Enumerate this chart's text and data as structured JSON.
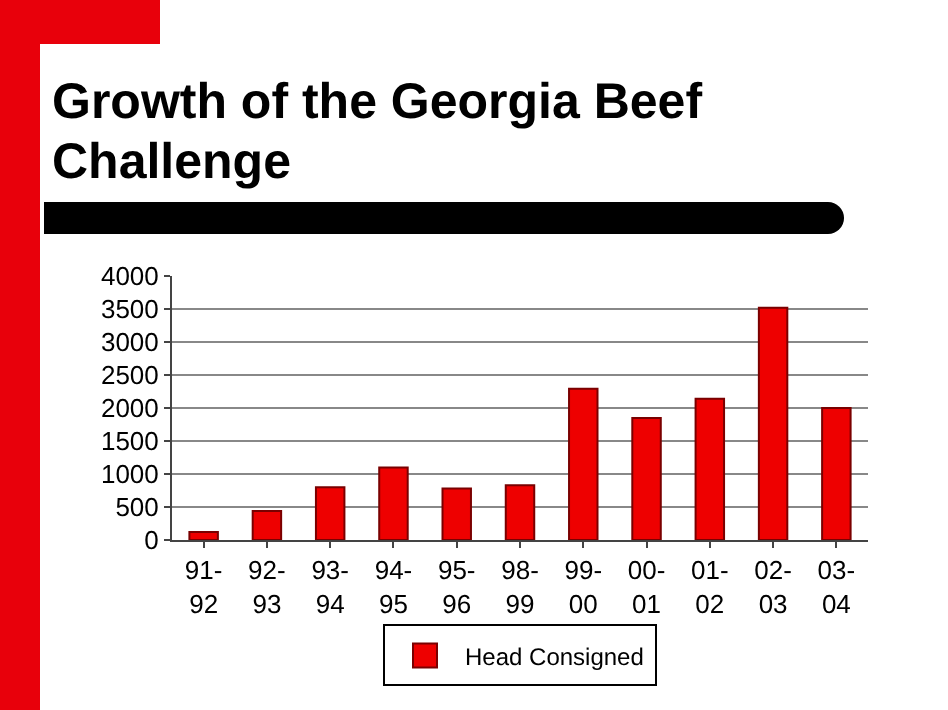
{
  "chart_data": {
    "type": "bar",
    "title": "Growth of the Georgia Beef Challenge",
    "categories": [
      "91-92",
      "92-93",
      "93-94",
      "94-95",
      "95-96",
      "98-99",
      "99-00",
      "00-01",
      "01-02",
      "02-03",
      "03-04"
    ],
    "series": [
      {
        "name": "Head Consigned",
        "color": "#ee0000",
        "values": [
          120,
          440,
          800,
          1100,
          780,
          830,
          2290,
          1850,
          2140,
          3520,
          2000
        ]
      }
    ],
    "ylim": [
      0,
      4000
    ],
    "yticks": [
      0,
      500,
      1000,
      1500,
      2000,
      2500,
      3000,
      3500,
      4000
    ],
    "grid": "y",
    "legend": "bottom"
  }
}
